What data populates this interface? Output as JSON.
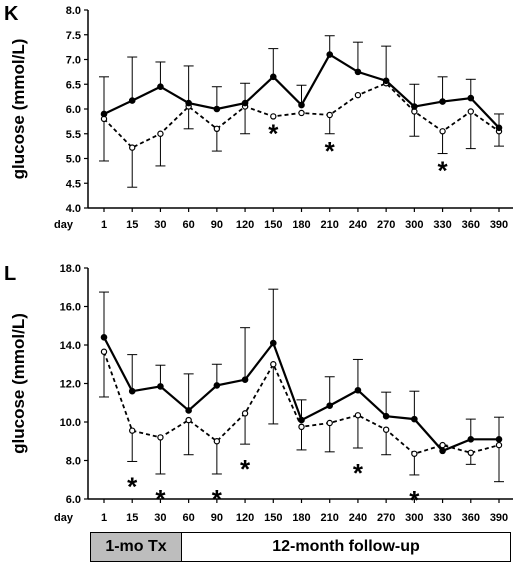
{
  "chart_data": [
    {
      "panel": "K",
      "type": "line",
      "ylabel": "glucose (mmol/L)",
      "xlabel": "day",
      "categories": [
        "1",
        "15",
        "30",
        "60",
        "90",
        "120",
        "150",
        "180",
        "210",
        "240",
        "270",
        "300",
        "330",
        "360",
        "390"
      ],
      "ylim": [
        4.0,
        8.0
      ],
      "yticks": [
        "4.0",
        "4.5",
        "5.0",
        "5.5",
        "6.0",
        "6.5",
        "7.0",
        "7.5",
        "8.0"
      ],
      "series": [
        {
          "marker": "filled",
          "line": "solid",
          "values": [
            5.9,
            6.17,
            6.45,
            6.12,
            6.0,
            6.12,
            6.65,
            6.08,
            7.1,
            6.75,
            6.57,
            6.05,
            6.15,
            6.22,
            5.62
          ],
          "err_up": [
            0.75,
            0.88,
            0.5,
            0.75,
            0.45,
            0.4,
            0.57,
            0.4,
            0.38,
            0.6,
            0.7,
            0.45,
            0.5,
            0.38,
            0.28
          ]
        },
        {
          "marker": "open",
          "line": "dashed",
          "values": [
            5.8,
            5.22,
            5.5,
            6.05,
            5.6,
            6.05,
            5.85,
            5.92,
            5.88,
            6.28,
            6.52,
            5.95,
            5.55,
            5.95,
            5.55
          ],
          "err_down": [
            0.85,
            0.8,
            0.65,
            0.45,
            0.45,
            0.55,
            0.0,
            0.0,
            0.38,
            0.0,
            0.0,
            0.5,
            0.45,
            0.75,
            0.3
          ]
        }
      ],
      "significant": [
        "150",
        "210",
        "330"
      ]
    },
    {
      "panel": "L",
      "type": "line",
      "ylabel": "glucose (mmol/L)",
      "xlabel": "day",
      "categories": [
        "1",
        "15",
        "30",
        "60",
        "90",
        "120",
        "150",
        "180",
        "210",
        "240",
        "270",
        "300",
        "330",
        "360",
        "390"
      ],
      "ylim": [
        6.0,
        18.0
      ],
      "yticks": [
        "6.0",
        "8.0",
        "10.0",
        "12.0",
        "14.0",
        "16.0",
        "18.0"
      ],
      "series": [
        {
          "marker": "filled",
          "line": "solid",
          "values": [
            14.4,
            11.6,
            11.85,
            10.6,
            11.9,
            12.2,
            14.1,
            10.1,
            10.85,
            11.65,
            10.3,
            10.15,
            8.5,
            9.1,
            9.1
          ],
          "err_up": [
            2.35,
            1.9,
            1.1,
            1.9,
            1.1,
            2.7,
            2.8,
            1.05,
            1.5,
            1.6,
            1.25,
            1.45,
            0.3,
            1.05,
            1.15
          ]
        },
        {
          "marker": "open",
          "line": "dashed",
          "values": [
            13.65,
            9.55,
            9.2,
            10.1,
            9.0,
            10.45,
            13.0,
            9.75,
            9.95,
            10.35,
            9.6,
            8.35,
            8.8,
            8.4,
            8.8
          ],
          "err_down": [
            2.35,
            1.6,
            1.9,
            1.8,
            1.7,
            1.6,
            3.1,
            1.2,
            1.5,
            1.7,
            1.3,
            1.1,
            0.0,
            0.6,
            1.9
          ]
        }
      ],
      "significant": [
        "15",
        "30",
        "90",
        "120",
        "240",
        "300"
      ]
    }
  ],
  "timeline": {
    "treatment_label": "1-mo Tx",
    "followup_label": "12-month follow-up"
  }
}
